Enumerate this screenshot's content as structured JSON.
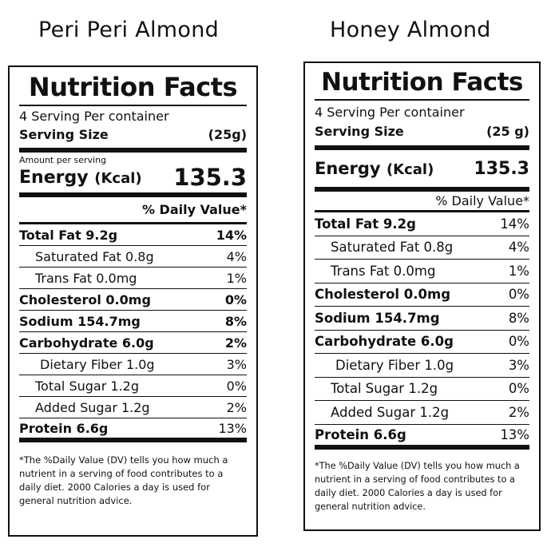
{
  "products": [
    {
      "name": "Peri Peri Almond",
      "label": {
        "title": "Nutrition Facts",
        "servings": "4 Serving Per container",
        "serving_size_label": "Serving Size",
        "serving_size_value": "(25g)",
        "amount_per_serving": "Amount per serving",
        "energy_label": "Energy",
        "energy_unit": "(Kcal)",
        "energy_value": "135.3",
        "dv_header": "% Daily Value*",
        "nutrients": [
          {
            "name": "Total Fat 9.2g",
            "dv": "14%"
          },
          {
            "name": "Saturated Fat 0.8g",
            "dv": "4%"
          },
          {
            "name": "Trans Fat 0.0mg",
            "dv": "1%"
          },
          {
            "name": "Cholesterol 0.0mg",
            "dv": "0%"
          },
          {
            "name": "Sodium 154.7mg",
            "dv": "8%"
          },
          {
            "name": "Carbohydrate 6.0g",
            "dv": "2%"
          },
          {
            "name": "Dietary Fiber 1.0g",
            "dv": "3%"
          },
          {
            "name": "Total Sugar 1.2g",
            "dv": "0%"
          },
          {
            "name": "Added Sugar 1.2g",
            "dv": "2%"
          },
          {
            "name": "Protein 6.6g",
            "dv": "13%"
          }
        ],
        "footnote": "*The %Daily Value (DV) tells you how much a nutrient in a serving of food contributes to a daily diet. 2000 Calories a day is used for general nutrition advice."
      }
    },
    {
      "name": "Honey Almond",
      "label": {
        "title": "Nutrition Facts",
        "servings": "4 Serving Per container",
        "serving_size_label": "Serving Size",
        "serving_size_value": "(25 g)",
        "energy_label": "Energy",
        "energy_unit": "(Kcal)",
        "energy_value": "135.3",
        "dv_header": "% Daily Value*",
        "nutrients": [
          {
            "name": "Total Fat 9.2g",
            "dv": "14%"
          },
          {
            "name": "Saturated Fat 0.8g",
            "dv": "4%"
          },
          {
            "name": "Trans Fat 0.0mg",
            "dv": "1%"
          },
          {
            "name": "Cholesterol 0.0mg",
            "dv": "0%"
          },
          {
            "name": "Sodium 154.7mg",
            "dv": "8%"
          },
          {
            "name": "Carbohydrate 6.0g",
            "dv": "0%"
          },
          {
            "name": "Dietary Fiber 1.0g",
            "dv": "3%"
          },
          {
            "name": "Total Sugar 1.2g",
            "dv": "0%"
          },
          {
            "name": "Added Sugar 1.2g",
            "dv": "2%"
          },
          {
            "name": "Protein 6.6g",
            "dv": "13%"
          }
        ],
        "footnote": "*The %Daily Value (DV) tells you how much a nutrient in a serving of food contributes to a daily diet. 2000 Calories a day is used for general nutrition advice."
      }
    }
  ]
}
